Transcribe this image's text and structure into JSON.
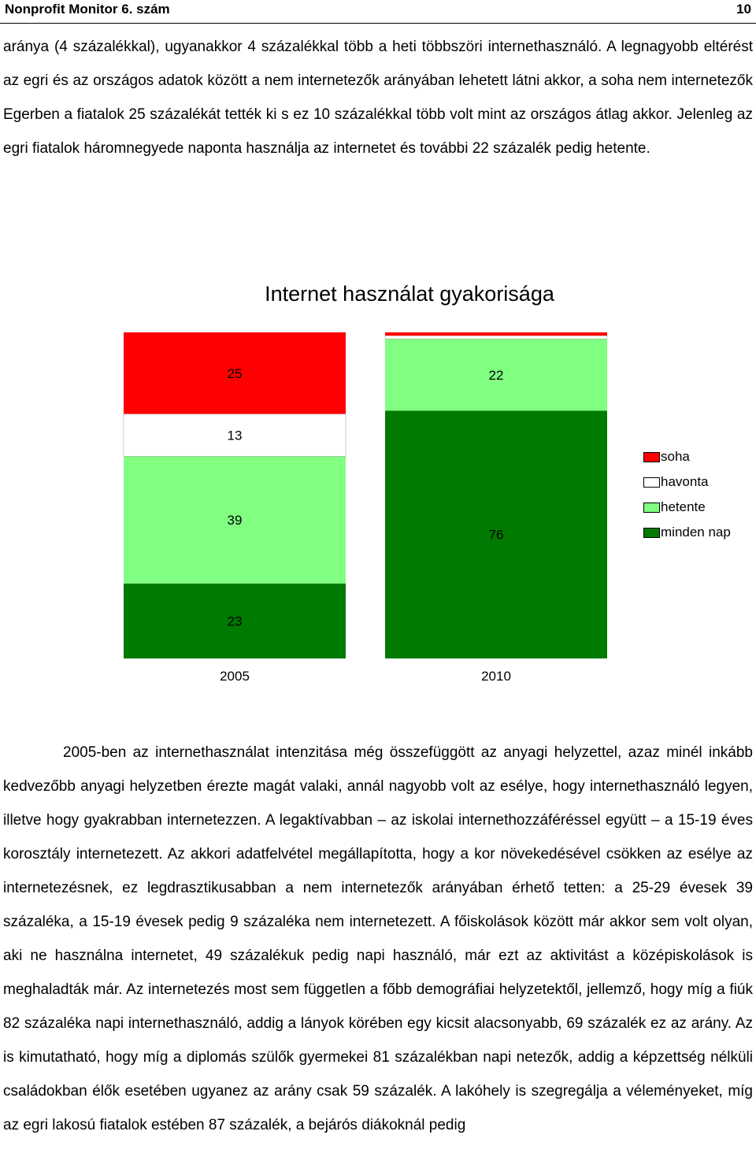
{
  "header": {
    "title": "Nonprofit Monitor 6. szám",
    "page_number": "10"
  },
  "paragraphs": [
    "aránya (4 százalékkal), ugyanakkor 4 százalékkal több a heti többszöri internethasználó. A legnagyobb eltérést az egri és az országos adatok között a nem internetezők arányában lehetett látni akkor, a soha nem internetezők Egerben a fiatalok 25 százalékát tették ki s ez 10 százalékkal több volt mint az országos átlag akkor. Jelenleg az egri fiatalok háromnegyede naponta használja az internetet és további 22 százalék pedig hetente.",
    "2005-ben az internethasználat intenzitása még összefüggött az anyagi helyzettel, azaz minél inkább kedvezőbb anyagi helyzetben érezte magát valaki, annál nagyobb volt az esélye, hogy internethasználó legyen, illetve hogy gyakrabban internetezzen. A legaktívabban – az iskolai internethozzáféréssel együtt – a 15-19 éves korosztály internetezett. Az akkori adatfelvétel megállapította, hogy a kor növekedésével csökken az esélye az internetezésnek, ez legdrasztikusabban a nem internetezők arányában érhető tetten: a 25-29 évesek 39 százaléka, a 15-19 évesek pedig 9 százaléka nem internetezett. A főiskolások között már akkor sem volt olyan, aki ne használna internetet, 49 százalékuk pedig napi használó, már ezt az aktivitást a középiskolások is meghaladták már. Az internetezés most sem független a főbb demográfiai helyzetektől, jellemző, hogy míg a fiúk 82 százaléka napi internethasználó, addig a lányok körében egy kicsit alacsonyabb, 69 százalék ez az arány. Az is kimutatható, hogy míg a diplomás szülők gyermekei 81 százalékban napi netezők, addig a képzettség nélküli családokban élők esetében ugyanez az arány csak 59 százalék. A lakóhely is szegregálja a véleményeket, míg az egri lakosú fiatalok estében 87 százalék, a bejárós diákoknál pedig"
  ],
  "chart_data": {
    "type": "bar",
    "stacked": true,
    "percent_stacked": true,
    "title": "Internet használat gyakorisága",
    "categories": [
      "2005",
      "2010"
    ],
    "series": [
      {
        "name": "minden nap",
        "color": "#007a00",
        "values": [
          23,
          76
        ]
      },
      {
        "name": "hetente",
        "color": "#80ff80",
        "values": [
          39,
          22
        ]
      },
      {
        "name": "havonta",
        "color": "#ffffff",
        "values": [
          13,
          1
        ]
      },
      {
        "name": "soha",
        "color": "#ff0000",
        "values": [
          25,
          1
        ]
      }
    ],
    "data_labels": [
      [
        "23",
        "76"
      ],
      [
        "39",
        "22"
      ],
      [
        "13",
        ""
      ],
      [
        "25",
        ""
      ]
    ],
    "legend_position": "right",
    "legend_order": [
      "soha",
      "havonta",
      "hetente",
      "minden nap"
    ],
    "ylim": [
      0,
      100
    ],
    "grid": false
  }
}
